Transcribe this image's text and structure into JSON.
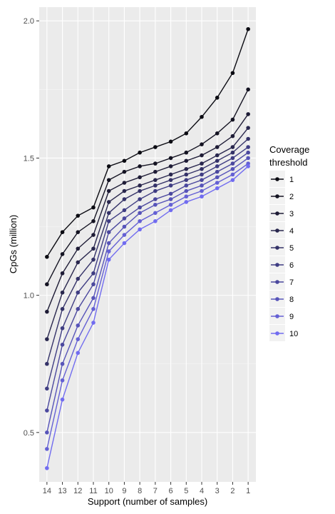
{
  "chart_data": {
    "type": "line",
    "xlabel": "Support (number of samples)",
    "ylabel": "CpGs (million)",
    "categories": [
      "14",
      "13",
      "12",
      "11",
      "10",
      "9",
      "8",
      "7",
      "6",
      "5",
      "4",
      "3",
      "2",
      "1"
    ],
    "yticks": [
      0.5,
      1.0,
      1.5,
      2.0
    ],
    "ytick_labels": [
      "0.5",
      "1.0",
      "1.5",
      "2.0"
    ],
    "ylim": [
      0.32,
      2.05
    ],
    "grid": true,
    "legend": {
      "title_line1": "Coverage",
      "title_line2": "threshold",
      "placement": "right"
    },
    "series": [
      {
        "name": "1",
        "color": "#0b0b12",
        "values": [
          1.14,
          1.23,
          1.29,
          1.32,
          1.47,
          1.49,
          1.52,
          1.54,
          1.56,
          1.59,
          1.65,
          1.72,
          1.81,
          1.97
        ]
      },
      {
        "name": "2",
        "color": "#141322",
        "values": [
          1.04,
          1.15,
          1.23,
          1.27,
          1.42,
          1.45,
          1.47,
          1.48,
          1.5,
          1.52,
          1.55,
          1.59,
          1.64,
          1.75
        ]
      },
      {
        "name": "3",
        "color": "#1e1c36",
        "values": [
          0.94,
          1.08,
          1.17,
          1.22,
          1.38,
          1.41,
          1.43,
          1.45,
          1.47,
          1.49,
          1.51,
          1.54,
          1.58,
          1.66
        ]
      },
      {
        "name": "4",
        "color": "#29274e",
        "values": [
          0.84,
          1.01,
          1.12,
          1.17,
          1.34,
          1.38,
          1.4,
          1.42,
          1.44,
          1.46,
          1.48,
          1.51,
          1.54,
          1.61
        ]
      },
      {
        "name": "5",
        "color": "#343268",
        "values": [
          0.75,
          0.95,
          1.06,
          1.13,
          1.3,
          1.35,
          1.38,
          1.4,
          1.42,
          1.44,
          1.46,
          1.49,
          1.52,
          1.57
        ]
      },
      {
        "name": "6",
        "color": "#3f3d83",
        "values": [
          0.66,
          0.88,
          1.01,
          1.08,
          1.27,
          1.31,
          1.35,
          1.38,
          1.4,
          1.42,
          1.44,
          1.47,
          1.5,
          1.54
        ]
      },
      {
        "name": "7",
        "color": "#4b489e",
        "values": [
          0.58,
          0.82,
          0.95,
          1.04,
          1.23,
          1.28,
          1.32,
          1.35,
          1.37,
          1.4,
          1.42,
          1.45,
          1.48,
          1.52
        ]
      },
      {
        "name": "8",
        "color": "#5754b9",
        "values": [
          0.5,
          0.75,
          0.89,
          0.99,
          1.19,
          1.25,
          1.3,
          1.33,
          1.35,
          1.38,
          1.4,
          1.43,
          1.46,
          1.5
        ]
      },
      {
        "name": "9",
        "color": "#6460d4",
        "values": [
          0.44,
          0.69,
          0.84,
          0.95,
          1.16,
          1.22,
          1.27,
          1.3,
          1.33,
          1.36,
          1.38,
          1.41,
          1.44,
          1.48
        ]
      },
      {
        "name": "10",
        "color": "#716cf0",
        "values": [
          0.37,
          0.62,
          0.79,
          0.9,
          1.13,
          1.19,
          1.24,
          1.27,
          1.31,
          1.34,
          1.36,
          1.39,
          1.42,
          1.47
        ]
      }
    ]
  }
}
